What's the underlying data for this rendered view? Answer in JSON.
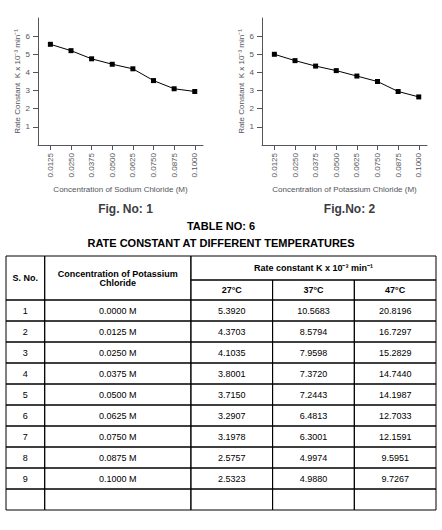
{
  "chart_data": [
    {
      "type": "line",
      "title": "Fig. No: 1",
      "x_label": "Concentration of Sodium Chloride (M)",
      "y_label": "Rate Constant  K x 10⁻³ min⁻¹",
      "x": [
        0.0125,
        0.025,
        0.0375,
        0.05,
        0.0625,
        0.075,
        0.0875,
        0.1
      ],
      "values": [
        5.55,
        5.2,
        4.75,
        4.45,
        4.2,
        3.55,
        3.1,
        2.95
      ],
      "color": "#000000",
      "marker": "square",
      "grid": false,
      "xlim": [
        0.005,
        0.105
      ],
      "xticks": [
        0.0125,
        {
          "value": 0.025,
          "label": "0.0250"
        },
        0.0375,
        {
          "value": 0.05,
          "label": "0.0500"
        },
        0.0625,
        {
          "value": 0.075,
          "label": "0.0750"
        },
        0.0875,
        {
          "value": 0.1,
          "label": "0.1000"
        }
      ],
      "ylim": [
        0,
        7
      ],
      "yticks": [
        1,
        2,
        3,
        4,
        5,
        6
      ]
    },
    {
      "type": "line",
      "title": "Fig.No: 2",
      "x_label": "Concentration of Potassium Chloride (M)",
      "y_label": "Rate Constant  K x 10⁻³ min⁻¹",
      "x": [
        0.0125,
        0.025,
        0.0375,
        0.05,
        0.0625,
        0.075,
        0.0875,
        0.1
      ],
      "values": [
        5.0,
        4.65,
        4.35,
        4.1,
        3.8,
        3.5,
        2.95,
        2.65
      ],
      "color": "#000000",
      "marker": "square",
      "grid": false,
      "xlim": [
        0.005,
        0.105
      ],
      "xticks": [
        0.0125,
        {
          "value": 0.025,
          "label": "0.0250"
        },
        0.0375,
        {
          "value": 0.05,
          "label": "0.0500"
        },
        0.0625,
        {
          "value": 0.075,
          "label": "0.0750"
        },
        0.0875,
        {
          "value": 0.1,
          "label": "0.1000"
        }
      ],
      "ylim": [
        0,
        7
      ],
      "yticks": [
        1,
        2,
        3,
        4,
        5,
        6
      ]
    },
    {
      "type": "table",
      "title": "TABLE NO: 6",
      "subtitle": "RATE CONSTANT AT DIFFERENT TEMPERATURES",
      "color": "#000000",
      "headers": [
        "S. No.",
        "Concentration of Potassium\nChloride",
        "Rate constant K x 10⁻³ min⁻¹"
      ],
      "subheaders": [
        "27°C",
        "37°C",
        "47°C"
      ],
      "rows": [
        [
          "1",
          "0.0000 M",
          "5.3920",
          "10.5683",
          "20.8196"
        ],
        [
          "2",
          "0.0125 M",
          "4.3703",
          "8.5794",
          "16.7297"
        ],
        [
          "3",
          "0.0250 M",
          "4.1035",
          "7.9598",
          "15.2829"
        ],
        [
          "4",
          "0.0375 M",
          "3.8001",
          "7.3720",
          "14.7440"
        ],
        [
          "5",
          "0.0500 M",
          "3.7150",
          "7.2443",
          "14.1987"
        ],
        [
          "6",
          "0.0625 M",
          "3.2907",
          "6.4813",
          "12.7033"
        ],
        [
          "7",
          "0.0750 M",
          "3.1978",
          "6.3001",
          "12.1591"
        ],
        [
          "8",
          "0.0875 M",
          "2.5757",
          "4.9974",
          "9.5951"
        ],
        [
          "9",
          "0.1000 M",
          "2.5323",
          "4.9880",
          "9.7267"
        ]
      ]
    }
  ]
}
